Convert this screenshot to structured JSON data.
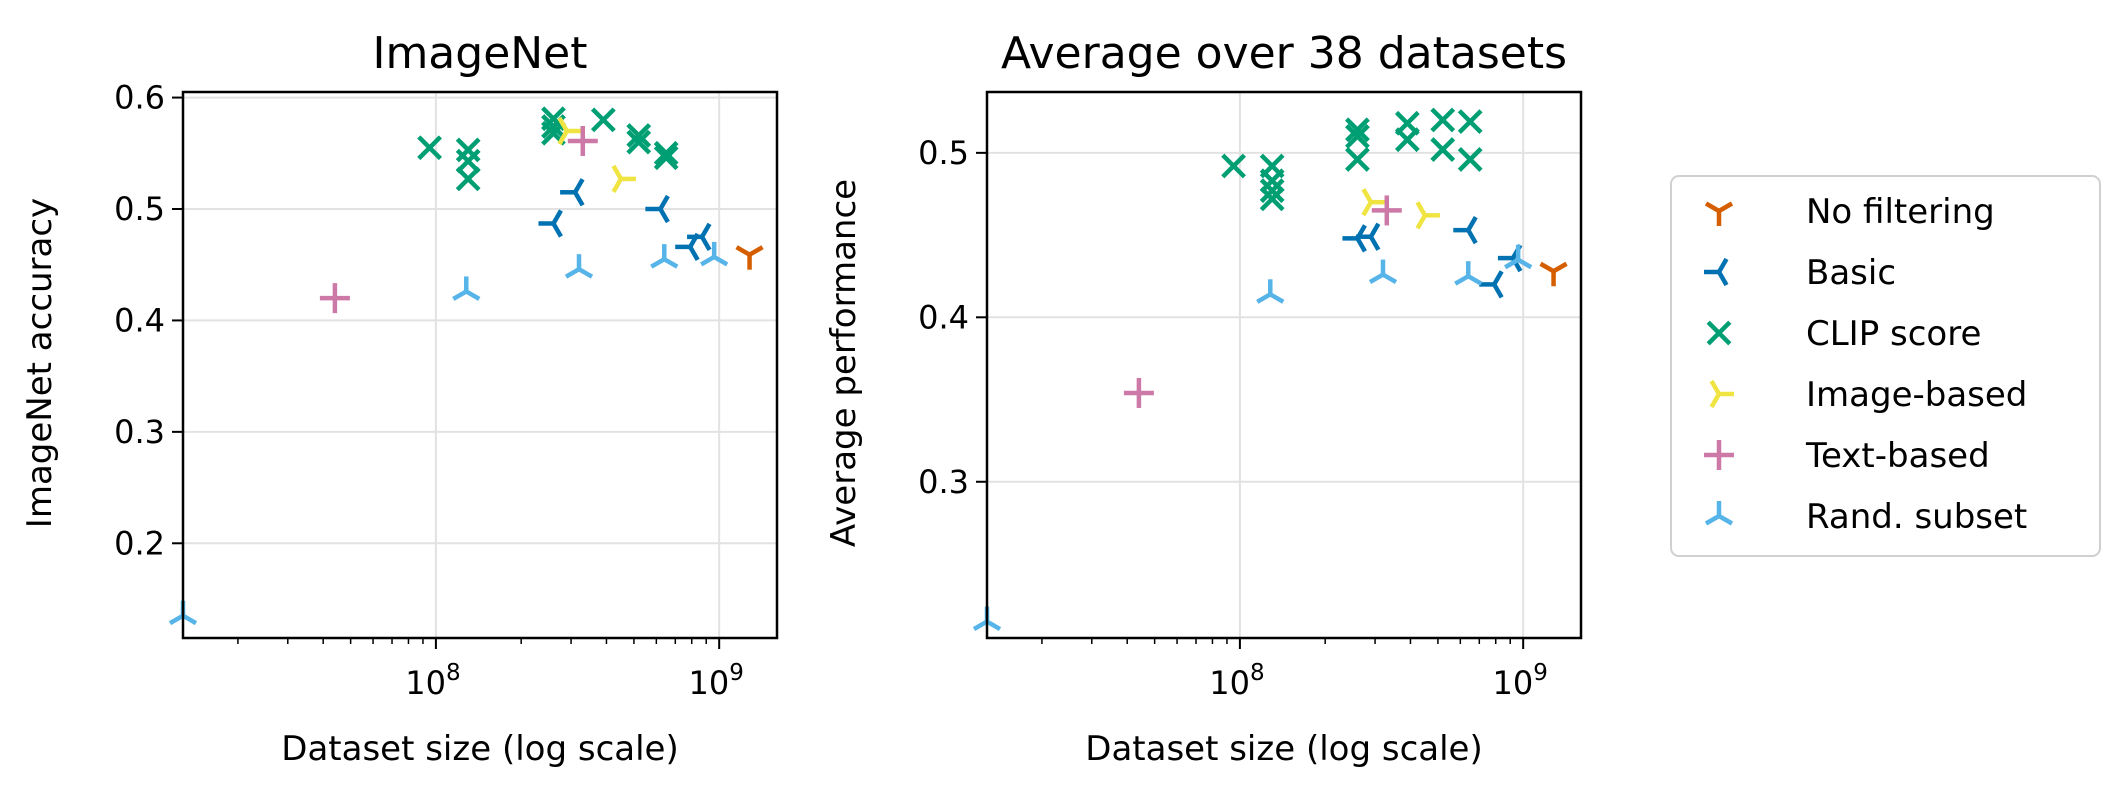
{
  "figure": {
    "legend": {
      "placement": "right",
      "entries": [
        {
          "name": "No filtering",
          "color": "#D55E00",
          "marker": "tri-down"
        },
        {
          "name": "Basic",
          "color": "#0072B2",
          "marker": "tri-left"
        },
        {
          "name": "CLIP score",
          "color": "#009E73",
          "marker": "x"
        },
        {
          "name": "Image-based",
          "color": "#F0E442",
          "marker": "tri-right"
        },
        {
          "name": "Text-based",
          "color": "#CC79A7",
          "marker": "plus"
        },
        {
          "name": "Rand. subset",
          "color": "#56B4E9",
          "marker": "tri-up"
        }
      ]
    }
  },
  "chart_data": [
    {
      "type": "scatter",
      "title": "ImageNet",
      "xlabel": "Dataset size (log scale)",
      "ylabel": "ImageNet accuracy",
      "xscale": "log",
      "xlim": [
        12800000,
        1600000000
      ],
      "ylim": [
        0.115,
        0.605
      ],
      "xticks": [
        {
          "value": 100000000,
          "base": "10",
          "exp": "8"
        },
        {
          "value": 1000000000,
          "base": "10",
          "exp": "9"
        }
      ],
      "yticks": [
        {
          "value": 0.2,
          "label": "0.2"
        },
        {
          "value": 0.3,
          "label": "0.3"
        },
        {
          "value": 0.4,
          "label": "0.4"
        },
        {
          "value": 0.5,
          "label": "0.5"
        },
        {
          "value": 0.6,
          "label": "0.6"
        }
      ],
      "grid": true,
      "series": [
        {
          "name": "No filtering",
          "points": [
            [
              1280000000,
              0.459
            ]
          ]
        },
        {
          "name": "Basic",
          "points": [
            [
              260000000,
              0.487
            ],
            [
              310000000,
              0.515
            ],
            [
              620000000,
              0.5
            ],
            [
              790000000,
              0.466
            ],
            [
              870000000,
              0.475
            ]
          ]
        },
        {
          "name": "CLIP score",
          "points": [
            [
              95000000,
              0.555
            ],
            [
              130000000,
              0.553
            ],
            [
              130000000,
              0.543
            ],
            [
              130000000,
              0.527
            ],
            [
              260000000,
              0.581
            ],
            [
              260000000,
              0.574
            ],
            [
              260000000,
              0.568
            ],
            [
              390000000,
              0.58
            ],
            [
              520000000,
              0.566
            ],
            [
              520000000,
              0.56
            ],
            [
              650000000,
              0.55
            ],
            [
              650000000,
              0.546
            ]
          ]
        },
        {
          "name": "Image-based",
          "points": [
            [
              290000000,
              0.57
            ],
            [
              450000000,
              0.527
            ]
          ]
        },
        {
          "name": "Text-based",
          "points": [
            [
              44000000,
              0.42
            ],
            [
              330000000,
              0.561
            ]
          ]
        },
        {
          "name": "Rand. subset",
          "points": [
            [
              12800000,
              0.135
            ],
            [
              128000000,
              0.426
            ],
            [
              320000000,
              0.446
            ],
            [
              640000000,
              0.455
            ],
            [
              960000000,
              0.457
            ]
          ]
        }
      ]
    },
    {
      "type": "scatter",
      "title": "Average over 38 datasets",
      "xlabel": "Dataset size (log scale)",
      "ylabel": "Average performance",
      "xscale": "log",
      "xlim": [
        12800000,
        1600000000
      ],
      "ylim": [
        0.205,
        0.537
      ],
      "xticks": [
        {
          "value": 100000000,
          "base": "10",
          "exp": "8"
        },
        {
          "value": 1000000000,
          "base": "10",
          "exp": "9"
        }
      ],
      "yticks": [
        {
          "value": 0.3,
          "label": "0.3"
        },
        {
          "value": 0.4,
          "label": "0.4"
        },
        {
          "value": 0.5,
          "label": "0.5"
        }
      ],
      "grid": true,
      "series": [
        {
          "name": "No filtering",
          "points": [
            [
              1280000000,
              0.428
            ]
          ]
        },
        {
          "name": "Basic",
          "points": [
            [
              260000000,
              0.448
            ],
            [
              290000000,
              0.449
            ],
            [
              640000000,
              0.453
            ],
            [
              790000000,
              0.42
            ],
            [
              920000000,
              0.436
            ]
          ]
        },
        {
          "name": "CLIP score",
          "points": [
            [
              95000000,
              0.492
            ],
            [
              130000000,
              0.492
            ],
            [
              130000000,
              0.483
            ],
            [
              130000000,
              0.477
            ],
            [
              130000000,
              0.472
            ],
            [
              260000000,
              0.514
            ],
            [
              260000000,
              0.51
            ],
            [
              260000000,
              0.496
            ],
            [
              390000000,
              0.518
            ],
            [
              390000000,
              0.508
            ],
            [
              520000000,
              0.52
            ],
            [
              520000000,
              0.502
            ],
            [
              650000000,
              0.519
            ],
            [
              650000000,
              0.496
            ]
          ]
        },
        {
          "name": "Image-based",
          "points": [
            [
              290000000,
              0.47
            ],
            [
              450000000,
              0.462
            ]
          ]
        },
        {
          "name": "Text-based",
          "points": [
            [
              44000000,
              0.354
            ],
            [
              330000000,
              0.465
            ]
          ]
        },
        {
          "name": "Rand. subset",
          "points": [
            [
              12800000,
              0.215
            ],
            [
              128000000,
              0.414
            ],
            [
              320000000,
              0.426
            ],
            [
              640000000,
              0.425
            ],
            [
              960000000,
              0.435
            ]
          ]
        }
      ]
    }
  ]
}
